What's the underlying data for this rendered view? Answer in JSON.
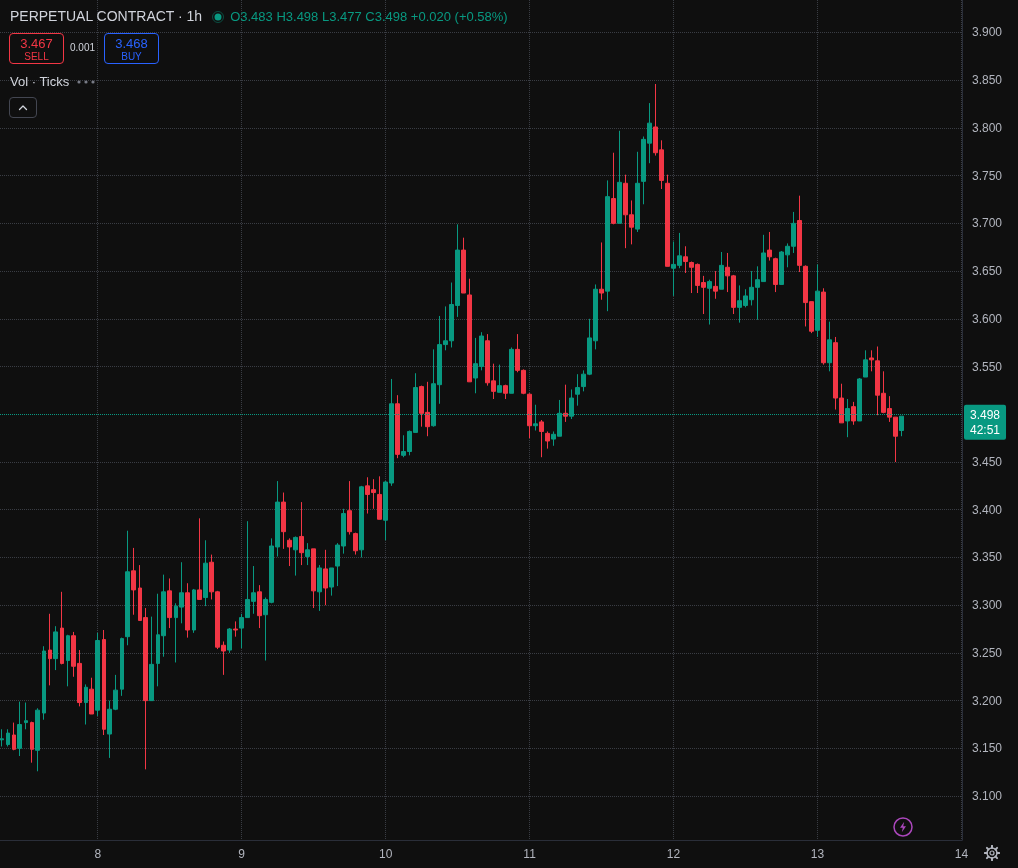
{
  "chart_data": {
    "type": "candlestick",
    "title": "PERPETUAL CONTRACT · 1h",
    "subtitle": "O3.483 H3.498 L3.477 C3.498 +0.020 (+0.58%)",
    "annotations": [
      "3.467",
      "SELL",
      "0.001",
      "3.468",
      "BUY",
      "Vol · Ticks",
      "42:51"
    ],
    "x": [
      7.333,
      7.375,
      7.417,
      7.458,
      7.5,
      7.542,
      7.583,
      7.625,
      7.667,
      7.708,
      7.75,
      7.792,
      7.833,
      7.875,
      7.917,
      7.958,
      8,
      8.042,
      8.083,
      8.125,
      8.167,
      8.208,
      8.25,
      8.292,
      8.333,
      8.375,
      8.417,
      8.458,
      8.5,
      8.542,
      8.583,
      8.625,
      8.667,
      8.708,
      8.75,
      8.792,
      8.833,
      8.875,
      8.917,
      8.958,
      9,
      9.042,
      9.083,
      9.125,
      9.167,
      9.208,
      9.25,
      9.292,
      9.333,
      9.375,
      9.417,
      9.458,
      9.5,
      9.542,
      9.583,
      9.625,
      9.667,
      9.708,
      9.75,
      9.792,
      9.833,
      9.875,
      9.917,
      9.958,
      10,
      10.042,
      10.083,
      10.125,
      10.167,
      10.208,
      10.25,
      10.292,
      10.333,
      10.375,
      10.417,
      10.458,
      10.5,
      10.542,
      10.583,
      10.625,
      10.667,
      10.708,
      10.75,
      10.792,
      10.833,
      10.875,
      10.917,
      10.958,
      11,
      11.042,
      11.083,
      11.125,
      11.167,
      11.208,
      11.25,
      11.292,
      11.333,
      11.375,
      11.417,
      11.458,
      11.5,
      11.542,
      11.583,
      11.625,
      11.667,
      11.708,
      11.75,
      11.792,
      11.833,
      11.875,
      11.917,
      11.958,
      12,
      12.042,
      12.083,
      12.125,
      12.167,
      12.208,
      12.25,
      12.292,
      12.333,
      12.375,
      12.417,
      12.458,
      12.5,
      12.542,
      12.583,
      12.625,
      12.667,
      12.708,
      12.75,
      12.792,
      12.833,
      12.875,
      12.917,
      12.958,
      13,
      13.042,
      13.083,
      13.125,
      13.167,
      13.208,
      13.25,
      13.292,
      13.333,
      13.375,
      13.417,
      13.458,
      13.5,
      13.542,
      13.583
    ],
    "ohlc": [
      [
        3.159,
        3.17,
        3.152,
        3.16
      ],
      [
        3.154,
        3.17,
        3.152,
        3.166
      ],
      [
        3.164,
        3.177,
        3.148,
        3.149
      ],
      [
        3.15,
        3.199,
        3.142,
        3.175
      ],
      [
        3.177,
        3.198,
        3.17,
        3.179
      ],
      [
        3.177,
        3.178,
        3.135,
        3.149
      ],
      [
        3.148,
        3.192,
        3.126,
        3.19
      ],
      [
        3.187,
        3.257,
        3.18,
        3.252
      ],
      [
        3.253,
        3.291,
        3.216,
        3.244
      ],
      [
        3.244,
        3.278,
        3.232,
        3.272
      ],
      [
        3.276,
        3.314,
        3.238,
        3.239
      ],
      [
        3.242,
        3.269,
        3.215,
        3.268
      ],
      [
        3.268,
        3.272,
        3.225,
        3.236
      ],
      [
        3.239,
        3.253,
        3.194,
        3.198
      ],
      [
        3.198,
        3.217,
        3.175,
        3.214
      ],
      [
        3.212,
        3.224,
        3.186,
        3.186
      ],
      [
        3.19,
        3.271,
        3.184,
        3.263
      ],
      [
        3.264,
        3.274,
        3.164,
        3.17
      ],
      [
        3.165,
        3.2,
        3.14,
        3.191
      ],
      [
        3.191,
        3.227,
        3.19,
        3.211
      ],
      [
        3.212,
        3.266,
        3.205,
        3.265
      ],
      [
        3.267,
        3.378,
        3.258,
        3.335
      ],
      [
        3.336,
        3.36,
        3.29,
        3.316
      ],
      [
        3.318,
        3.342,
        3.284,
        3.284
      ],
      [
        3.287,
        3.297,
        3.128,
        3.2
      ],
      [
        3.2,
        3.288,
        3.2,
        3.238
      ],
      [
        3.239,
        3.312,
        3.215,
        3.269
      ],
      [
        3.268,
        3.332,
        3.246,
        3.314
      ],
      [
        3.315,
        3.328,
        3.276,
        3.287
      ],
      [
        3.287,
        3.302,
        3.24,
        3.299
      ],
      [
        3.298,
        3.345,
        3.281,
        3.313
      ],
      [
        3.313,
        3.323,
        3.266,
        3.274
      ],
      [
        3.274,
        3.317,
        3.271,
        3.316
      ],
      [
        3.316,
        3.391,
        3.306,
        3.306
      ],
      [
        3.308,
        3.368,
        3.299,
        3.344
      ],
      [
        3.345,
        3.353,
        3.306,
        3.314
      ],
      [
        3.314,
        3.315,
        3.254,
        3.256
      ],
      [
        3.258,
        3.262,
        3.227,
        3.252
      ],
      [
        3.253,
        3.276,
        3.25,
        3.275
      ],
      [
        3.275,
        3.283,
        3.267,
        3.274
      ],
      [
        3.276,
        3.291,
        3.255,
        3.287
      ],
      [
        3.287,
        3.388,
        3.287,
        3.306
      ],
      [
        3.304,
        3.341,
        3.291,
        3.313
      ],
      [
        3.314,
        3.321,
        3.276,
        3.289
      ],
      [
        3.29,
        3.308,
        3.242,
        3.306
      ],
      [
        3.303,
        3.37,
        3.302,
        3.362
      ],
      [
        3.361,
        3.43,
        3.351,
        3.408
      ],
      [
        3.408,
        3.418,
        3.359,
        3.377
      ],
      [
        3.368,
        3.37,
        3.341,
        3.361
      ],
      [
        3.358,
        3.372,
        3.331,
        3.371
      ],
      [
        3.372,
        3.408,
        3.342,
        3.355
      ],
      [
        3.351,
        3.365,
        3.342,
        3.358
      ],
      [
        3.359,
        3.359,
        3.297,
        3.315
      ],
      [
        3.314,
        3.342,
        3.294,
        3.339
      ],
      [
        3.338,
        3.358,
        3.3,
        3.318
      ],
      [
        3.319,
        3.339,
        3.31,
        3.339
      ],
      [
        3.341,
        3.365,
        3.32,
        3.363
      ],
      [
        3.362,
        3.401,
        3.354,
        3.396
      ],
      [
        3.399,
        3.43,
        3.374,
        3.377
      ],
      [
        3.375,
        3.376,
        3.353,
        3.357
      ],
      [
        3.358,
        3.425,
        3.35,
        3.424
      ],
      [
        3.425,
        3.434,
        3.396,
        3.416
      ],
      [
        3.421,
        3.432,
        3.401,
        3.418
      ],
      [
        3.416,
        3.435,
        3.39,
        3.39
      ],
      [
        3.389,
        3.43,
        3.368,
        3.429
      ],
      [
        3.428,
        3.537,
        3.425,
        3.511
      ],
      [
        3.511,
        3.52,
        3.454,
        3.458
      ],
      [
        3.457,
        3.478,
        3.455,
        3.461
      ],
      [
        3.461,
        3.483,
        3.457,
        3.482
      ],
      [
        3.481,
        3.543,
        3.481,
        3.528
      ],
      [
        3.529,
        3.53,
        3.487,
        3.501
      ],
      [
        3.502,
        3.534,
        3.477,
        3.487
      ],
      [
        3.488,
        3.568,
        3.487,
        3.532
      ],
      [
        3.531,
        3.603,
        3.511,
        3.573
      ],
      [
        3.573,
        3.613,
        3.567,
        3.577
      ],
      [
        3.577,
        3.638,
        3.57,
        3.615
      ],
      [
        3.614,
        3.699,
        3.602,
        3.672
      ],
      [
        3.672,
        3.685,
        3.627,
        3.627
      ],
      [
        3.625,
        3.642,
        3.534,
        3.534
      ],
      [
        3.538,
        3.58,
        3.522,
        3.553
      ],
      [
        3.55,
        3.586,
        3.546,
        3.582
      ],
      [
        3.577,
        3.584,
        3.53,
        3.533
      ],
      [
        3.535,
        3.553,
        3.516,
        3.524
      ],
      [
        3.523,
        3.552,
        3.523,
        3.53
      ],
      [
        3.53,
        3.531,
        3.516,
        3.522
      ],
      [
        3.522,
        3.57,
        3.522,
        3.568
      ],
      [
        3.568,
        3.584,
        3.544,
        3.546
      ],
      [
        3.546,
        3.547,
        3.521,
        3.522
      ],
      [
        3.521,
        3.522,
        3.475,
        3.488
      ],
      [
        3.488,
        3.51,
        3.483,
        3.49
      ],
      [
        3.492,
        3.494,
        3.455,
        3.482
      ],
      [
        3.48,
        3.482,
        3.464,
        3.472
      ],
      [
        3.474,
        3.482,
        3.467,
        3.479
      ],
      [
        3.477,
        3.515,
        3.477,
        3.501
      ],
      [
        3.501,
        3.531,
        3.492,
        3.498
      ],
      [
        3.498,
        3.526,
        3.495,
        3.517
      ],
      [
        3.521,
        3.542,
        3.509,
        3.528
      ],
      [
        3.529,
        3.546,
        3.524,
        3.542
      ],
      [
        3.542,
        3.6,
        3.541,
        3.58
      ],
      [
        3.577,
        3.636,
        3.568,
        3.631
      ],
      [
        3.631,
        3.68,
        3.62,
        3.627
      ],
      [
        3.629,
        3.745,
        3.608,
        3.728
      ],
      [
        3.726,
        3.774,
        3.699,
        3.7
      ],
      [
        3.7,
        3.797,
        3.7,
        3.743
      ],
      [
        3.742,
        3.751,
        3.674,
        3.709
      ],
      [
        3.709,
        3.724,
        3.678,
        3.696
      ],
      [
        3.694,
        3.775,
        3.691,
        3.742
      ],
      [
        3.744,
        3.791,
        3.72,
        3.788
      ],
      [
        3.784,
        3.826,
        3.763,
        3.805
      ],
      [
        3.801,
        3.846,
        3.771,
        3.774
      ],
      [
        3.777,
        3.787,
        3.736,
        3.745
      ],
      [
        3.742,
        3.751,
        3.655,
        3.655
      ],
      [
        3.653,
        3.681,
        3.624,
        3.657
      ],
      [
        3.656,
        3.69,
        3.653,
        3.666
      ],
      [
        3.665,
        3.676,
        3.648,
        3.66
      ],
      [
        3.659,
        3.66,
        3.627,
        3.654
      ],
      [
        3.657,
        3.658,
        3.627,
        3.635
      ],
      [
        3.638,
        3.645,
        3.605,
        3.633
      ],
      [
        3.632,
        3.641,
        3.594,
        3.639
      ],
      [
        3.634,
        3.65,
        3.621,
        3.629
      ],
      [
        3.631,
        3.67,
        3.631,
        3.656
      ],
      [
        3.654,
        3.669,
        3.628,
        3.645
      ],
      [
        3.645,
        3.646,
        3.605,
        3.612
      ],
      [
        3.612,
        3.635,
        3.596,
        3.619
      ],
      [
        3.614,
        3.631,
        3.612,
        3.624
      ],
      [
        3.62,
        3.65,
        3.614,
        3.633
      ],
      [
        3.633,
        3.655,
        3.599,
        3.641
      ],
      [
        3.639,
        3.688,
        3.639,
        3.669
      ],
      [
        3.672,
        3.691,
        3.661,
        3.665
      ],
      [
        3.663,
        3.664,
        3.628,
        3.636
      ],
      [
        3.636,
        3.671,
        3.636,
        3.67
      ],
      [
        3.667,
        3.679,
        3.654,
        3.676
      ],
      [
        3.676,
        3.712,
        3.669,
        3.7
      ],
      [
        3.703,
        3.729,
        3.649,
        3.656
      ],
      [
        3.655,
        3.656,
        3.592,
        3.617
      ],
      [
        3.618,
        3.618,
        3.585,
        3.587
      ],
      [
        3.588,
        3.657,
        3.581,
        3.629
      ],
      [
        3.628,
        3.632,
        3.552,
        3.554
      ],
      [
        3.554,
        3.597,
        3.545,
        3.578
      ],
      [
        3.575,
        3.581,
        3.505,
        3.517
      ],
      [
        3.517,
        3.532,
        3.491,
        3.491
      ],
      [
        3.493,
        3.516,
        3.476,
        3.506
      ],
      [
        3.508,
        3.513,
        3.489,
        3.493
      ],
      [
        3.493,
        3.538,
        3.493,
        3.537
      ],
      [
        3.539,
        3.567,
        3.539,
        3.557
      ],
      [
        3.559,
        3.567,
        3.545,
        3.557
      ],
      [
        3.556,
        3.571,
        3.499,
        3.52
      ],
      [
        3.522,
        3.545,
        3.501,
        3.502
      ],
      [
        3.506,
        3.519,
        3.492,
        3.497
      ],
      [
        3.497,
        3.497,
        3.45,
        3.477
      ],
      [
        3.483,
        3.498,
        3.477,
        3.498
      ]
    ],
    "colors": [
      "#089981",
      "#089981",
      "#f23645",
      "#089981",
      "#089981",
      "#f23645",
      "#089981",
      "#089981",
      "#f23645",
      "#089981",
      "#f23645",
      "#089981",
      "#f23645",
      "#f23645",
      "#089981",
      "#f23645",
      "#089981",
      "#f23645",
      "#089981",
      "#089981",
      "#089981",
      "#089981",
      "#f23645",
      "#f23645",
      "#f23645",
      "#089981",
      "#089981",
      "#089981",
      "#f23645",
      "#089981",
      "#089981",
      "#f23645",
      "#089981",
      "#f23645",
      "#089981",
      "#f23645",
      "#f23645",
      "#f23645",
      "#089981",
      "#f23645",
      "#089981",
      "#089981",
      "#089981",
      "#f23645",
      "#089981",
      "#089981",
      "#089981",
      "#f23645",
      "#f23645",
      "#089981",
      "#f23645",
      "#089981",
      "#f23645",
      "#089981",
      "#f23645",
      "#089981",
      "#089981",
      "#089981",
      "#f23645",
      "#f23645",
      "#089981",
      "#f23645",
      "#f23645",
      "#f23645",
      "#089981",
      "#089981",
      "#f23645",
      "#089981",
      "#089981",
      "#089981",
      "#f23645",
      "#f23645",
      "#089981",
      "#089981",
      "#089981",
      "#089981",
      "#089981",
      "#f23645",
      "#f23645",
      "#089981",
      "#089981",
      "#f23645",
      "#f23645",
      "#089981",
      "#f23645",
      "#089981",
      "#f23645",
      "#f23645",
      "#f23645",
      "#089981",
      "#f23645",
      "#f23645",
      "#089981",
      "#089981",
      "#f23645",
      "#089981",
      "#089981",
      "#089981",
      "#089981",
      "#089981",
      "#f23645",
      "#089981",
      "#f23645",
      "#089981",
      "#f23645",
      "#f23645",
      "#089981",
      "#089981",
      "#089981",
      "#f23645",
      "#f23645",
      "#f23645",
      "#089981",
      "#089981",
      "#f23645",
      "#f23645",
      "#f23645",
      "#f23645",
      "#089981",
      "#f23645",
      "#089981",
      "#f23645",
      "#f23645",
      "#089981",
      "#089981",
      "#089981",
      "#089981",
      "#089981",
      "#f23645",
      "#f23645",
      "#089981",
      "#089981",
      "#089981",
      "#f23645",
      "#f23645",
      "#f23645",
      "#089981",
      "#f23645",
      "#089981",
      "#f23645",
      "#f23645",
      "#089981",
      "#f23645",
      "#089981",
      "#089981",
      "#f23645",
      "#f23645",
      "#f23645",
      "#f23645",
      "#f23645",
      "#089981"
    ],
    "xlim": [
      7.321,
      14.004
    ],
    "xticks": [
      8,
      9,
      10,
      11,
      12,
      13,
      14
    ],
    "ylim": [
      3.054,
      3.934
    ],
    "yticks": [
      {
        "value": 3.1,
        "label": "3.100"
      },
      {
        "value": 3.15,
        "label": "3.150"
      },
      {
        "value": 3.2,
        "label": "3.200"
      },
      {
        "value": 3.25,
        "label": "3.250"
      },
      {
        "value": 3.3,
        "label": "3.300"
      },
      {
        "value": 3.35,
        "label": "3.350"
      },
      {
        "value": 3.4,
        "label": "3.400"
      },
      {
        "value": 3.45,
        "label": "3.450"
      },
      {
        "value": 3.5,
        "label": null
      },
      {
        "value": 3.55,
        "label": "3.550"
      },
      {
        "value": 3.6,
        "label": "3.600"
      },
      {
        "value": 3.65,
        "label": "3.650"
      },
      {
        "value": 3.7,
        "label": "3.700"
      },
      {
        "value": 3.75,
        "label": "3.750"
      },
      {
        "value": 3.8,
        "label": "3.800"
      },
      {
        "value": 3.85,
        "label": "3.850"
      },
      {
        "value": 3.9,
        "label": "3.900"
      }
    ],
    "ref_lines": [
      {
        "axis": "y",
        "value": 3.498,
        "label": "3.498",
        "color": "#089981",
        "line_style": "dotted"
      }
    ],
    "grid": true
  }
}
